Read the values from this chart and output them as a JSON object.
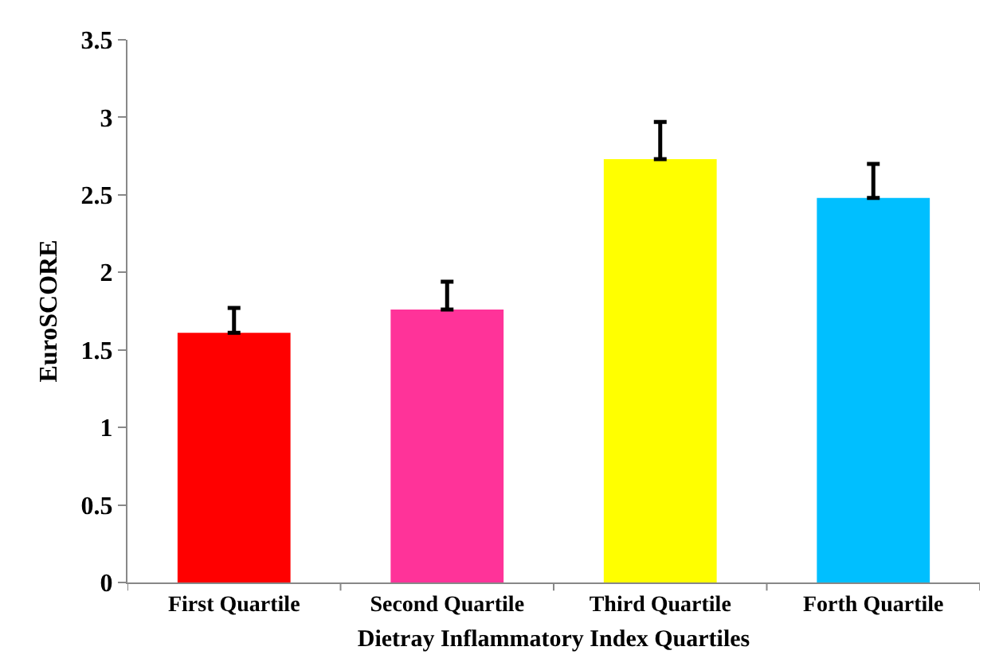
{
  "chart_data": {
    "type": "bar",
    "xlabel": "Dietray Inflammatory Index Quartiles",
    "ylabel": "EuroSCORE",
    "categories": [
      "First Quartile",
      "Second Quartile",
      "Third Quartile",
      "Forth Quartile"
    ],
    "values": [
      1.61,
      1.76,
      2.73,
      2.48
    ],
    "colors": [
      "#ff0000",
      "#ff3399",
      "#ffff00",
      "#00bfff"
    ],
    "errors": [
      [
        1.61,
        1.77
      ],
      [
        1.76,
        1.94
      ],
      [
        2.73,
        2.97
      ],
      [
        2.48,
        2.7
      ]
    ],
    "ylim": [
      0,
      3.5
    ],
    "yticks": [
      0,
      0.5,
      1,
      1.5,
      2,
      2.5,
      3,
      3.5
    ],
    "grid": false
  }
}
